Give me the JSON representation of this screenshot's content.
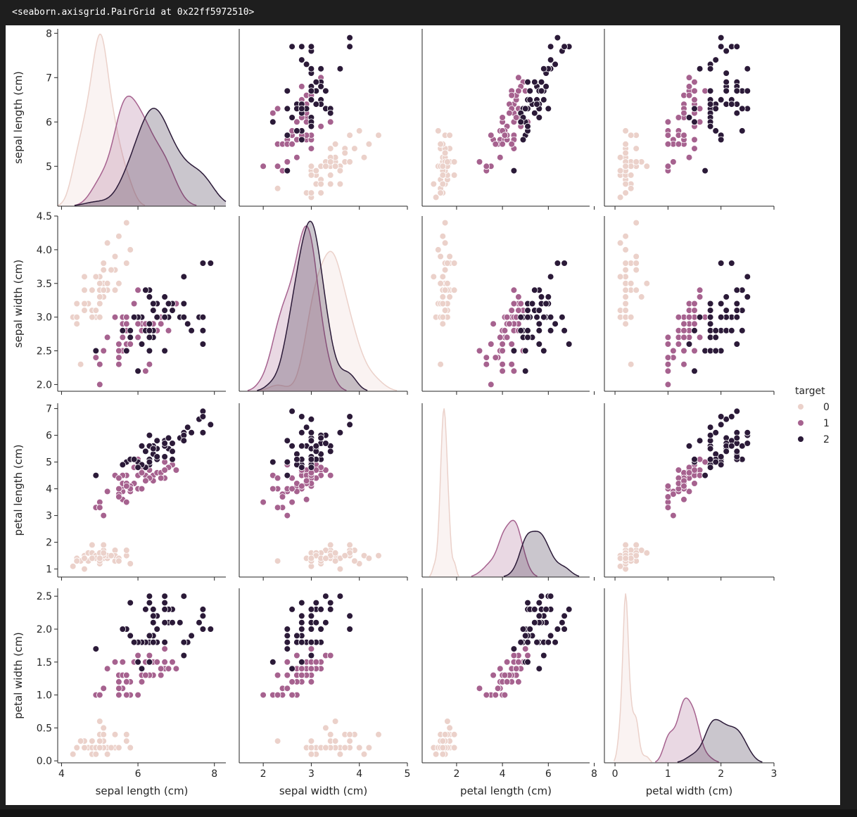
{
  "output": {
    "repr_text": "<seaborn.axisgrid.PairGrid at 0x22ff5972510>"
  },
  "chart_data": {
    "type": "scatter",
    "variables": [
      "sepal length (cm)",
      "sepal width (cm)",
      "petal length (cm)",
      "petal width (cm)"
    ],
    "diag_kind": "kde",
    "axes": [
      {
        "label": "sepal length (cm)",
        "lim": [
          3.9,
          8.3
        ],
        "ticks": [
          4,
          6,
          8
        ],
        "y_ticks": [
          5,
          6,
          7,
          8
        ],
        "ylim": [
          4.1,
          8.1
        ]
      },
      {
        "label": "sepal width (cm)",
        "lim": [
          1.5,
          5.0
        ],
        "ticks": [
          2,
          3,
          4,
          5
        ],
        "y_ticks": [
          2.0,
          2.5,
          3.0,
          3.5,
          4.0,
          4.5
        ],
        "ylim": [
          1.9,
          4.5
        ]
      },
      {
        "label": "petal length (cm)",
        "lim": [
          0.5,
          7.8
        ],
        "ticks": [
          2,
          4,
          6,
          8
        ],
        "y_ticks": [
          1,
          2,
          3,
          4,
          5,
          6,
          7
        ],
        "ylim": [
          0.7,
          7.2
        ]
      },
      {
        "label": "petal width (cm)",
        "lim": [
          -0.2,
          3.0
        ],
        "ticks": [
          0,
          1,
          2,
          3
        ],
        "y_ticks": [
          0.0,
          0.5,
          1.0,
          1.5,
          2.0,
          2.5
        ],
        "ylim": [
          -0.03,
          2.62
        ]
      }
    ],
    "legend": {
      "title": "target",
      "entries": [
        "0",
        "1",
        "2"
      ],
      "placement": "center-right"
    },
    "colors": {
      "0": "#ebd1ca",
      "1": "#a6628f",
      "2": "#2b1a38"
    },
    "kde_fill_opacity": 0.25,
    "groups": {
      "0": [
        [
          5.1,
          3.5,
          1.4,
          0.2
        ],
        [
          4.9,
          3.0,
          1.4,
          0.2
        ],
        [
          4.7,
          3.2,
          1.3,
          0.2
        ],
        [
          4.6,
          3.1,
          1.5,
          0.2
        ],
        [
          5.0,
          3.6,
          1.4,
          0.2
        ],
        [
          5.4,
          3.9,
          1.7,
          0.4
        ],
        [
          4.6,
          3.4,
          1.4,
          0.3
        ],
        [
          5.0,
          3.4,
          1.5,
          0.2
        ],
        [
          4.4,
          2.9,
          1.4,
          0.2
        ],
        [
          4.9,
          3.1,
          1.5,
          0.1
        ],
        [
          5.4,
          3.7,
          1.5,
          0.2
        ],
        [
          4.8,
          3.4,
          1.6,
          0.2
        ],
        [
          4.8,
          3.0,
          1.4,
          0.1
        ],
        [
          4.3,
          3.0,
          1.1,
          0.1
        ],
        [
          5.8,
          4.0,
          1.2,
          0.2
        ],
        [
          5.7,
          4.4,
          1.5,
          0.4
        ],
        [
          5.4,
          3.9,
          1.3,
          0.4
        ],
        [
          5.1,
          3.5,
          1.4,
          0.3
        ],
        [
          5.7,
          3.8,
          1.7,
          0.3
        ],
        [
          5.1,
          3.8,
          1.5,
          0.3
        ],
        [
          5.4,
          3.4,
          1.7,
          0.2
        ],
        [
          5.1,
          3.7,
          1.5,
          0.4
        ],
        [
          4.6,
          3.6,
          1.0,
          0.2
        ],
        [
          5.1,
          3.3,
          1.7,
          0.5
        ],
        [
          4.8,
          3.4,
          1.9,
          0.2
        ],
        [
          5.0,
          3.0,
          1.6,
          0.2
        ],
        [
          5.0,
          3.4,
          1.6,
          0.4
        ],
        [
          5.2,
          3.5,
          1.5,
          0.2
        ],
        [
          5.2,
          3.4,
          1.4,
          0.2
        ],
        [
          4.7,
          3.2,
          1.6,
          0.2
        ],
        [
          4.8,
          3.1,
          1.6,
          0.2
        ],
        [
          5.4,
          3.4,
          1.5,
          0.4
        ],
        [
          5.2,
          4.1,
          1.5,
          0.1
        ],
        [
          5.5,
          4.2,
          1.4,
          0.2
        ],
        [
          4.9,
          3.1,
          1.5,
          0.2
        ],
        [
          5.0,
          3.2,
          1.2,
          0.2
        ],
        [
          5.5,
          3.5,
          1.3,
          0.2
        ],
        [
          4.9,
          3.6,
          1.4,
          0.1
        ],
        [
          4.4,
          3.0,
          1.3,
          0.2
        ],
        [
          5.1,
          3.4,
          1.5,
          0.2
        ],
        [
          5.0,
          3.5,
          1.3,
          0.3
        ],
        [
          4.5,
          2.3,
          1.3,
          0.3
        ],
        [
          4.4,
          3.2,
          1.3,
          0.2
        ],
        [
          5.0,
          3.5,
          1.6,
          0.6
        ],
        [
          5.1,
          3.8,
          1.9,
          0.4
        ],
        [
          4.8,
          3.0,
          1.4,
          0.3
        ],
        [
          5.1,
          3.8,
          1.6,
          0.2
        ],
        [
          4.6,
          3.2,
          1.4,
          0.2
        ],
        [
          5.3,
          3.7,
          1.5,
          0.2
        ],
        [
          5.0,
          3.3,
          1.4,
          0.2
        ]
      ],
      "1": [
        [
          7.0,
          3.2,
          4.7,
          1.4
        ],
        [
          6.4,
          3.2,
          4.5,
          1.5
        ],
        [
          6.9,
          3.1,
          4.9,
          1.5
        ],
        [
          5.5,
          2.3,
          4.0,
          1.3
        ],
        [
          6.5,
          2.8,
          4.6,
          1.5
        ],
        [
          5.7,
          2.8,
          4.5,
          1.3
        ],
        [
          6.3,
          3.3,
          4.7,
          1.6
        ],
        [
          4.9,
          2.4,
          3.3,
          1.0
        ],
        [
          6.6,
          2.9,
          4.6,
          1.3
        ],
        [
          5.2,
          2.7,
          3.9,
          1.4
        ],
        [
          5.0,
          2.0,
          3.5,
          1.0
        ],
        [
          5.9,
          3.0,
          4.2,
          1.5
        ],
        [
          6.0,
          2.2,
          4.0,
          1.0
        ],
        [
          6.1,
          2.9,
          4.7,
          1.4
        ],
        [
          5.6,
          2.9,
          3.6,
          1.3
        ],
        [
          6.7,
          3.1,
          4.4,
          1.4
        ],
        [
          5.6,
          3.0,
          4.5,
          1.5
        ],
        [
          5.8,
          2.7,
          4.1,
          1.0
        ],
        [
          6.2,
          2.2,
          4.5,
          1.5
        ],
        [
          5.6,
          2.5,
          3.9,
          1.1
        ],
        [
          5.9,
          3.2,
          4.8,
          1.8
        ],
        [
          6.1,
          2.8,
          4.0,
          1.3
        ],
        [
          6.3,
          2.5,
          4.9,
          1.5
        ],
        [
          6.1,
          2.8,
          4.7,
          1.2
        ],
        [
          6.4,
          2.9,
          4.3,
          1.3
        ],
        [
          6.6,
          3.0,
          4.4,
          1.4
        ],
        [
          6.8,
          2.8,
          4.8,
          1.4
        ],
        [
          6.7,
          3.0,
          5.0,
          1.7
        ],
        [
          6.0,
          2.9,
          4.5,
          1.5
        ],
        [
          5.7,
          2.6,
          3.5,
          1.0
        ],
        [
          5.5,
          2.4,
          3.8,
          1.1
        ],
        [
          5.5,
          2.4,
          3.7,
          1.0
        ],
        [
          5.8,
          2.7,
          3.9,
          1.2
        ],
        [
          6.0,
          2.7,
          5.1,
          1.6
        ],
        [
          5.4,
          3.0,
          4.5,
          1.5
        ],
        [
          6.0,
          3.4,
          4.5,
          1.6
        ],
        [
          6.7,
          3.1,
          4.7,
          1.5
        ],
        [
          6.3,
          2.3,
          4.4,
          1.3
        ],
        [
          5.6,
          3.0,
          4.1,
          1.3
        ],
        [
          5.5,
          2.5,
          4.0,
          1.3
        ],
        [
          5.5,
          2.6,
          4.4,
          1.2
        ],
        [
          6.1,
          3.0,
          4.6,
          1.4
        ],
        [
          5.8,
          2.6,
          4.0,
          1.2
        ],
        [
          5.0,
          2.3,
          3.3,
          1.0
        ],
        [
          5.6,
          2.7,
          4.2,
          1.3
        ],
        [
          5.7,
          3.0,
          4.2,
          1.2
        ],
        [
          5.7,
          2.9,
          4.2,
          1.3
        ],
        [
          6.2,
          2.9,
          4.3,
          1.3
        ],
        [
          5.1,
          2.5,
          3.0,
          1.1
        ],
        [
          5.7,
          2.8,
          4.1,
          1.3
        ]
      ],
      "2": [
        [
          6.3,
          3.3,
          6.0,
          2.5
        ],
        [
          5.8,
          2.7,
          5.1,
          1.9
        ],
        [
          7.1,
          3.0,
          5.9,
          2.1
        ],
        [
          6.3,
          2.9,
          5.6,
          1.8
        ],
        [
          6.5,
          3.0,
          5.8,
          2.2
        ],
        [
          7.6,
          3.0,
          6.6,
          2.1
        ],
        [
          4.9,
          2.5,
          4.5,
          1.7
        ],
        [
          7.3,
          2.9,
          6.3,
          1.8
        ],
        [
          6.7,
          2.5,
          5.8,
          1.8
        ],
        [
          7.2,
          3.6,
          6.1,
          2.5
        ],
        [
          6.5,
          3.2,
          5.1,
          2.0
        ],
        [
          6.4,
          2.7,
          5.3,
          1.9
        ],
        [
          6.8,
          3.0,
          5.5,
          2.1
        ],
        [
          5.7,
          2.5,
          5.0,
          2.0
        ],
        [
          5.8,
          2.8,
          5.1,
          2.4
        ],
        [
          6.4,
          3.2,
          5.3,
          2.3
        ],
        [
          6.5,
          3.0,
          5.5,
          1.8
        ],
        [
          7.7,
          3.8,
          6.7,
          2.2
        ],
        [
          7.7,
          2.6,
          6.9,
          2.3
        ],
        [
          6.0,
          2.2,
          5.0,
          1.5
        ],
        [
          6.9,
          3.2,
          5.7,
          2.3
        ],
        [
          5.6,
          2.8,
          4.9,
          2.0
        ],
        [
          7.7,
          2.8,
          6.7,
          2.0
        ],
        [
          6.3,
          2.7,
          4.9,
          1.8
        ],
        [
          6.7,
          3.3,
          5.7,
          2.1
        ],
        [
          7.2,
          3.2,
          6.0,
          1.8
        ],
        [
          6.2,
          2.8,
          4.8,
          1.8
        ],
        [
          6.1,
          3.0,
          4.9,
          1.8
        ],
        [
          6.4,
          2.8,
          5.6,
          2.1
        ],
        [
          7.2,
          3.0,
          5.8,
          1.6
        ],
        [
          7.4,
          2.8,
          6.1,
          1.9
        ],
        [
          7.9,
          3.8,
          6.4,
          2.0
        ],
        [
          6.4,
          2.8,
          5.6,
          2.2
        ],
        [
          6.3,
          2.8,
          5.1,
          1.5
        ],
        [
          6.1,
          2.6,
          5.6,
          1.4
        ],
        [
          7.7,
          3.0,
          6.1,
          2.3
        ],
        [
          6.3,
          3.4,
          5.6,
          2.4
        ],
        [
          6.4,
          3.1,
          5.5,
          1.8
        ],
        [
          6.0,
          3.0,
          4.8,
          1.8
        ],
        [
          6.9,
          3.1,
          5.4,
          2.1
        ],
        [
          6.7,
          3.1,
          5.6,
          2.4
        ],
        [
          6.9,
          3.1,
          5.1,
          2.3
        ],
        [
          5.8,
          2.7,
          5.1,
          1.9
        ],
        [
          6.8,
          3.2,
          5.9,
          2.3
        ],
        [
          6.7,
          3.3,
          5.7,
          2.5
        ],
        [
          6.7,
          3.0,
          5.2,
          2.3
        ],
        [
          6.3,
          2.5,
          5.0,
          1.9
        ],
        [
          6.5,
          3.0,
          5.2,
          2.0
        ],
        [
          6.2,
          3.4,
          5.4,
          2.3
        ],
        [
          5.9,
          3.0,
          5.1,
          1.8
        ]
      ]
    }
  }
}
